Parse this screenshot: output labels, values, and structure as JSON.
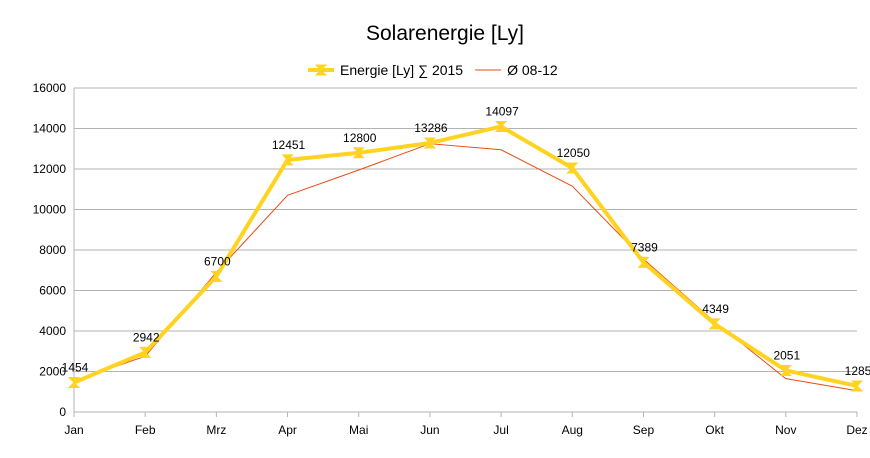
{
  "chart_data": {
    "type": "line",
    "title": "Solarenergie [Ly]",
    "xlabel": "",
    "ylabel": "",
    "categories": [
      "Jan",
      "Feb",
      "Mrz",
      "Apr",
      "Mai",
      "Jun",
      "Jul",
      "Aug",
      "Sep",
      "Okt",
      "Nov",
      "Dez"
    ],
    "ylim": [
      0,
      16000
    ],
    "yticks": [
      0,
      2000,
      4000,
      6000,
      8000,
      10000,
      12000,
      14000,
      16000
    ],
    "grid": true,
    "legend_position": "top",
    "series": [
      {
        "name": "Energie [Ly] ∑ 2015",
        "color": "#ffd320",
        "marker": "hourglass",
        "show_labels": true,
        "values": [
          1454,
          2942,
          6700,
          12451,
          12800,
          13286,
          14097,
          12050,
          7389,
          4349,
          2051,
          1285
        ]
      },
      {
        "name": "Ø 08-12",
        "color": "#e8490f",
        "marker": "none",
        "show_labels": false,
        "values": [
          1550,
          2750,
          6900,
          10700,
          11950,
          13250,
          12950,
          11150,
          7550,
          4450,
          1650,
          1050
        ]
      }
    ]
  }
}
